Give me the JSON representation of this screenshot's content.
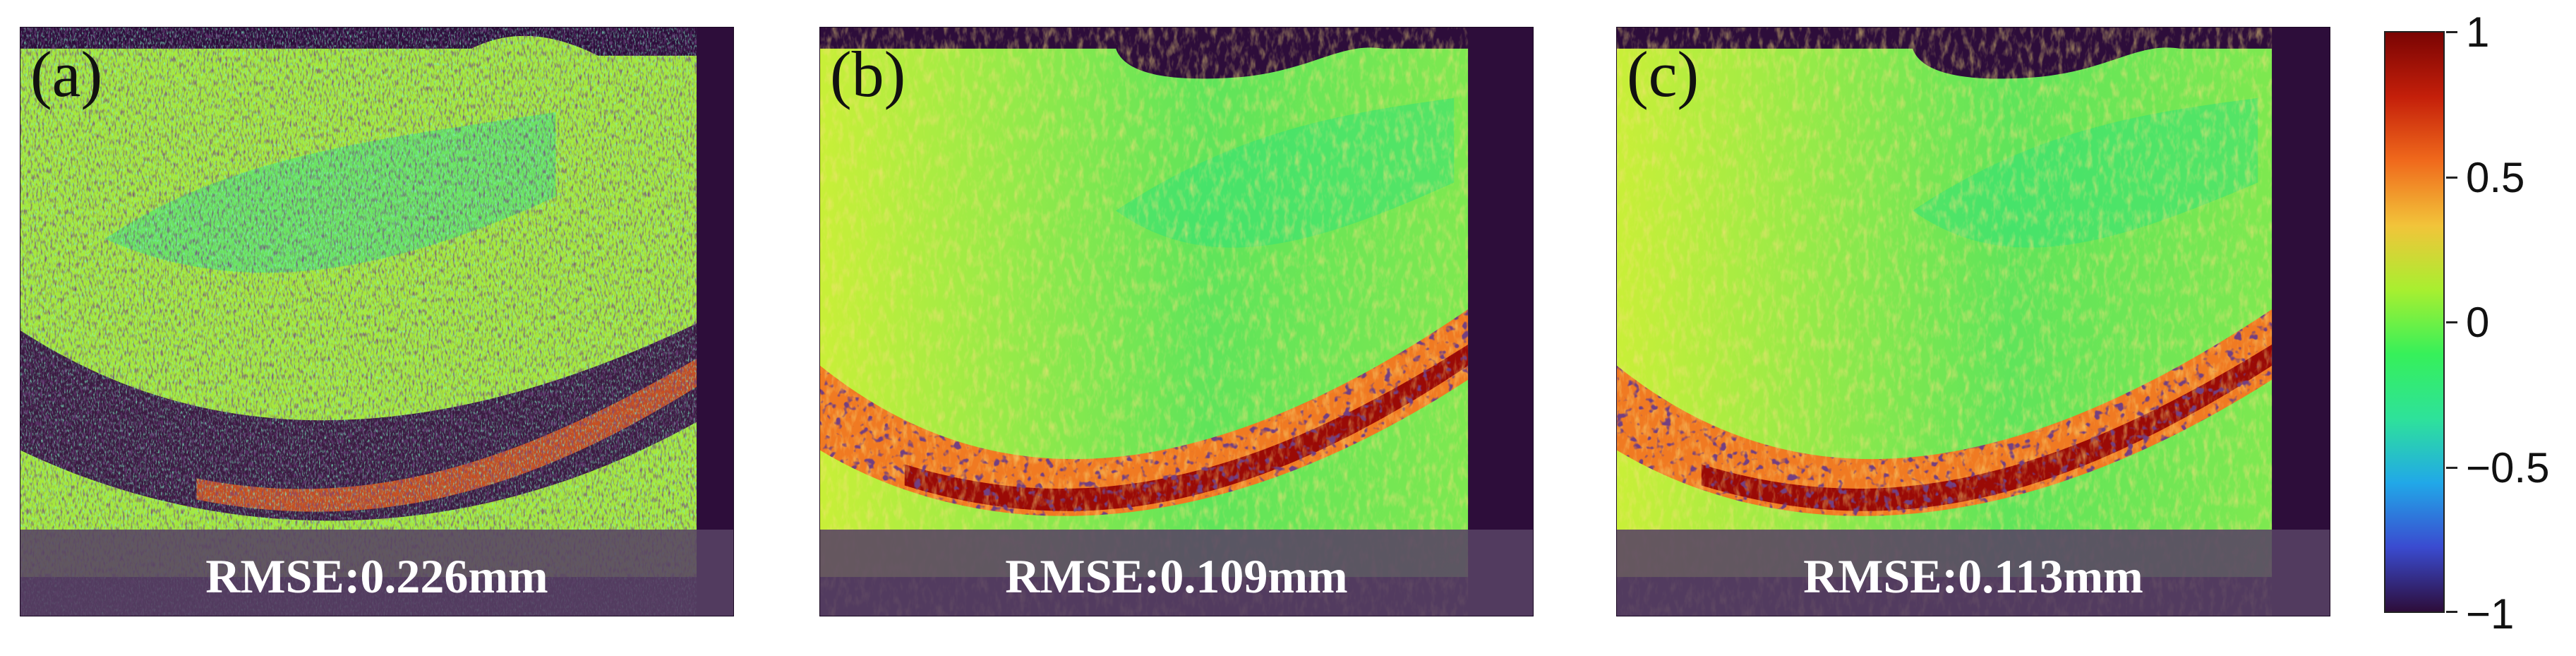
{
  "panels": [
    {
      "id": "a",
      "letter": "(a)",
      "rmse": "RMSE:0.226mm",
      "style": "noisy"
    },
    {
      "id": "b",
      "letter": "(b)",
      "rmse": "RMSE:0.109mm",
      "style": "smooth"
    },
    {
      "id": "c",
      "letter": "(c)",
      "rmse": "RMSE:0.113mm",
      "style": "smooth"
    }
  ],
  "colorbar": {
    "ticks": [
      "1",
      "0.5",
      "0",
      "−0.5",
      "−1"
    ],
    "min": -1,
    "max": 1,
    "colors": [
      "#2d0d3a",
      "#3a4bd0",
      "#21a8e8",
      "#2ee29a",
      "#36f05a",
      "#a8ef30",
      "#f2c43a",
      "#f06a1c",
      "#c41f0a",
      "#7a0403"
    ]
  }
}
